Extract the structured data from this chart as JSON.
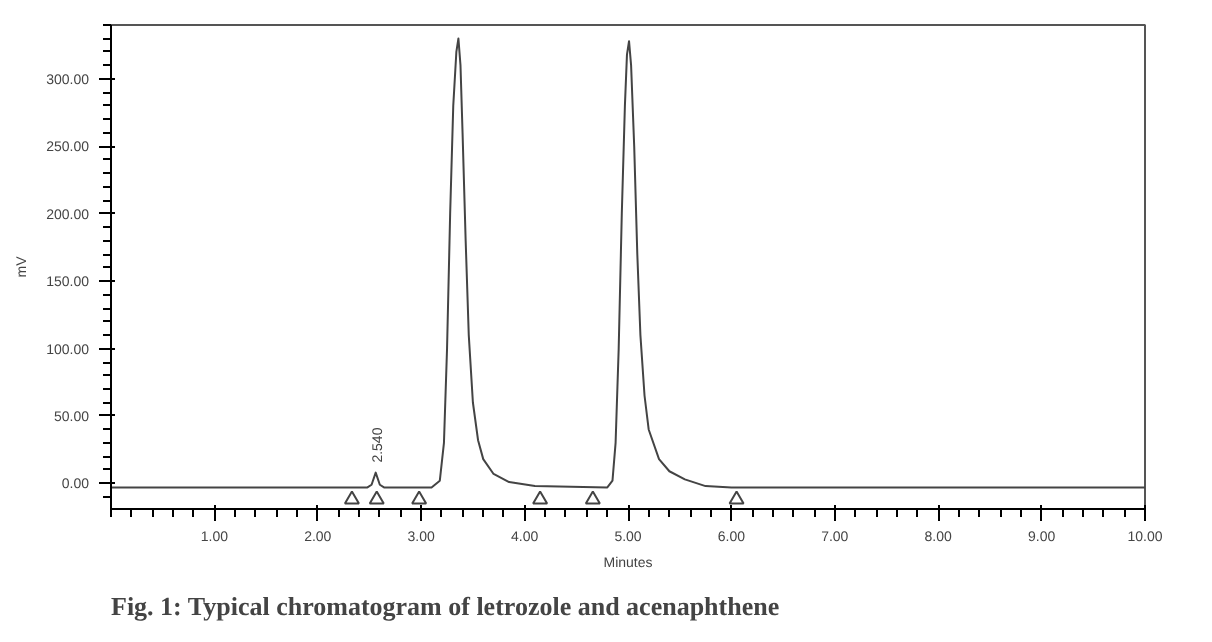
{
  "chart_data": {
    "type": "line",
    "title": "Fig. 1: Typical chromatogram of letrozole and acenaphthene",
    "xlabel": "Minutes",
    "ylabel": "mV",
    "xlim": [
      0,
      10
    ],
    "ylim": [
      -19,
      340
    ],
    "xticks": [
      {
        "value": 1,
        "label": "1.00"
      },
      {
        "value": 2,
        "label": "2.00"
      },
      {
        "value": 3,
        "label": "3.00"
      },
      {
        "value": 4,
        "label": "4.00"
      },
      {
        "value": 5,
        "label": "5.00"
      },
      {
        "value": 6,
        "label": "6.00"
      },
      {
        "value": 7,
        "label": "7.00"
      },
      {
        "value": 8,
        "label": "8.00"
      },
      {
        "value": 9,
        "label": "9.00"
      },
      {
        "value": 10,
        "label": "10.00"
      }
    ],
    "yticks": [
      {
        "value": 0,
        "label": "0.00"
      },
      {
        "value": 50,
        "label": "50.00"
      },
      {
        "value": 100,
        "label": "100.00"
      },
      {
        "value": 150,
        "label": "150.00"
      },
      {
        "value": 200,
        "label": "200.00"
      },
      {
        "value": 250,
        "label": "250.00"
      },
      {
        "value": 300,
        "label": "300.00"
      }
    ],
    "grid": false,
    "series": [
      {
        "color": "#444444",
        "line_style": "solid",
        "x": [
          0,
          2.48,
          2.52,
          2.56,
          2.6,
          2.64,
          3.1,
          3.18,
          3.22,
          3.25,
          3.28,
          3.31,
          3.34,
          3.36,
          3.38,
          3.4,
          3.43,
          3.46,
          3.5,
          3.55,
          3.6,
          3.7,
          3.85,
          4.1,
          4.8,
          4.85,
          4.88,
          4.91,
          4.94,
          4.97,
          4.99,
          5.01,
          5.03,
          5.06,
          5.09,
          5.12,
          5.16,
          5.2,
          5.3,
          5.4,
          5.55,
          5.75,
          6.0,
          10
        ],
        "values": [
          -3,
          -3,
          -1,
          8,
          -1,
          -3,
          -3,
          2,
          30,
          100,
          200,
          280,
          320,
          330,
          310,
          260,
          180,
          110,
          60,
          32,
          18,
          7,
          1,
          -2,
          -3,
          2,
          30,
          100,
          200,
          280,
          318,
          328,
          310,
          250,
          170,
          110,
          65,
          40,
          18,
          9,
          3,
          -2,
          -3,
          -3
        ]
      },
      {
        "type": "scatter",
        "marker": "triangle",
        "color": "#444444",
        "x": [
          2.33,
          2.57,
          2.98,
          4.15,
          4.66,
          6.05
        ],
        "values": [
          -12,
          -12,
          -12,
          -12,
          -12,
          -12
        ]
      }
    ],
    "annotations": [
      {
        "text": "2.540",
        "x": 2.56,
        "y": 8
      }
    ]
  }
}
